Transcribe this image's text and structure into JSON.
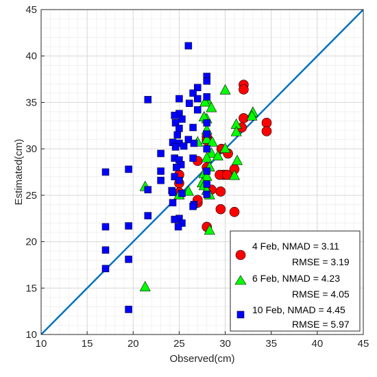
{
  "chart_data": {
    "type": "scatter",
    "xlabel": "Observed(cm)",
    "ylabel": "Estimated(cm)",
    "xlim": [
      10,
      45
    ],
    "ylim": [
      10,
      45
    ],
    "xticks": [
      10,
      15,
      20,
      25,
      30,
      35,
      40,
      45
    ],
    "yticks": [
      10,
      15,
      20,
      25,
      30,
      35,
      40,
      45
    ],
    "grid": true,
    "reference_line": {
      "x": [
        10,
        45
      ],
      "y": [
        10,
        45
      ],
      "color": "#0072BD"
    },
    "legend": {
      "placement": "bottom-right",
      "entries": [
        {
          "line1": "4   Feb, NMAD = 3.11",
          "line2": "RMSE = 3.19"
        },
        {
          "line1": "6   Feb, NMAD = 4.23",
          "line2": "RMSE = 4.05"
        },
        {
          "line1": "10 Feb, NMAD = 4.45",
          "line2": "RMSE = 5.97"
        }
      ]
    },
    "series": [
      {
        "marker": "circle",
        "color": "#ff0000",
        "points": [
          [
            32.0,
            36.9
          ],
          [
            32.0,
            36.4
          ],
          [
            32.0,
            33.3
          ],
          [
            34.5,
            32.8
          ],
          [
            34.5,
            31.9
          ],
          [
            31.8,
            32.3
          ],
          [
            28.0,
            31.3
          ],
          [
            28.0,
            30.9
          ],
          [
            29.6,
            30.0
          ],
          [
            30.3,
            29.5
          ],
          [
            27.0,
            28.7
          ],
          [
            28.0,
            28.0
          ],
          [
            31.0,
            27.8
          ],
          [
            29.8,
            27.2
          ],
          [
            29.4,
            27.2
          ],
          [
            30.2,
            27.2
          ],
          [
            25.0,
            27.2
          ],
          [
            25.0,
            26.3
          ],
          [
            28.5,
            25.6
          ],
          [
            29.5,
            25.4
          ],
          [
            25.0,
            25.3
          ],
          [
            27.0,
            24.2
          ],
          [
            27.0,
            24.5
          ],
          [
            29.5,
            23.5
          ],
          [
            31.0,
            23.2
          ],
          [
            28.0,
            21.6
          ]
        ]
      },
      {
        "marker": "triangle",
        "color": "#00ff00",
        "points": [
          [
            28.0,
            35.3
          ],
          [
            27.8,
            35.0
          ],
          [
            28.5,
            34.4
          ],
          [
            30.0,
            36.3
          ],
          [
            33.0,
            33.9
          ],
          [
            32.9,
            33.5
          ],
          [
            28.0,
            33.2
          ],
          [
            27.7,
            33.4
          ],
          [
            31.2,
            32.6
          ],
          [
            31.2,
            31.8
          ],
          [
            28.0,
            32.0
          ],
          [
            28.0,
            31.0
          ],
          [
            28.6,
            30.7
          ],
          [
            27.0,
            30.7
          ],
          [
            30.0,
            30.0
          ],
          [
            28.5,
            29.5
          ],
          [
            29.2,
            29.2
          ],
          [
            28.0,
            29.0
          ],
          [
            31.3,
            28.7
          ],
          [
            28.3,
            28.0
          ],
          [
            27.7,
            27.3
          ],
          [
            31.0,
            27.1
          ],
          [
            28.0,
            27.0
          ],
          [
            27.5,
            26.3
          ],
          [
            27.7,
            26.0
          ],
          [
            21.3,
            25.9
          ],
          [
            28.0,
            25.5
          ],
          [
            26.0,
            25.4
          ],
          [
            28.3,
            25.0
          ],
          [
            25.0,
            25.0
          ],
          [
            28.3,
            21.2
          ],
          [
            21.3,
            15.1
          ]
        ]
      },
      {
        "marker": "square",
        "color": "#0000ff",
        "points": [
          [
            26.0,
            41.1
          ],
          [
            28.0,
            37.8
          ],
          [
            28.0,
            37.3
          ],
          [
            27.0,
            36.6
          ],
          [
            26.5,
            36.0
          ],
          [
            28.0,
            35.6
          ],
          [
            27.0,
            35.4
          ],
          [
            25.0,
            35.4
          ],
          [
            21.6,
            35.3
          ],
          [
            26.1,
            34.9
          ],
          [
            27.0,
            34.2
          ],
          [
            25.0,
            33.8
          ],
          [
            24.5,
            33.6
          ],
          [
            25.3,
            33.2
          ],
          [
            24.6,
            32.8
          ],
          [
            28.0,
            32.8
          ],
          [
            26.5,
            32.3
          ],
          [
            25.0,
            32.2
          ],
          [
            24.8,
            31.5
          ],
          [
            28.0,
            31.6
          ],
          [
            26.0,
            31.0
          ],
          [
            24.3,
            30.7
          ],
          [
            25.0,
            30.6
          ],
          [
            26.6,
            30.6
          ],
          [
            24.6,
            30.2
          ],
          [
            25.5,
            30.3
          ],
          [
            28.0,
            30.0
          ],
          [
            23.0,
            29.5
          ],
          [
            24.5,
            29.0
          ],
          [
            26.5,
            29.0
          ],
          [
            25.0,
            28.8
          ],
          [
            25.2,
            28.3
          ],
          [
            24.7,
            28.0
          ],
          [
            23.0,
            27.6
          ],
          [
            28.0,
            27.6
          ],
          [
            17.0,
            27.5
          ],
          [
            19.5,
            27.8
          ],
          [
            24.5,
            27.0
          ],
          [
            25.0,
            26.6
          ],
          [
            23.0,
            26.6
          ],
          [
            28.0,
            26.2
          ],
          [
            21.6,
            25.6
          ],
          [
            24.2,
            25.5
          ],
          [
            24.3,
            25.3
          ],
          [
            25.3,
            25.2
          ],
          [
            28.0,
            25.1
          ],
          [
            24.3,
            24.2
          ],
          [
            26.6,
            24.0
          ],
          [
            26.5,
            23.8
          ],
          [
            25.0,
            22.5
          ],
          [
            21.6,
            22.8
          ],
          [
            24.5,
            22.4
          ],
          [
            25.3,
            22.0
          ],
          [
            24.9,
            21.6
          ],
          [
            17.0,
            21.6
          ],
          [
            19.5,
            21.7
          ],
          [
            17.0,
            19.1
          ],
          [
            19.5,
            18.1
          ],
          [
            17.0,
            17.1
          ],
          [
            19.5,
            12.7
          ]
        ]
      }
    ]
  }
}
